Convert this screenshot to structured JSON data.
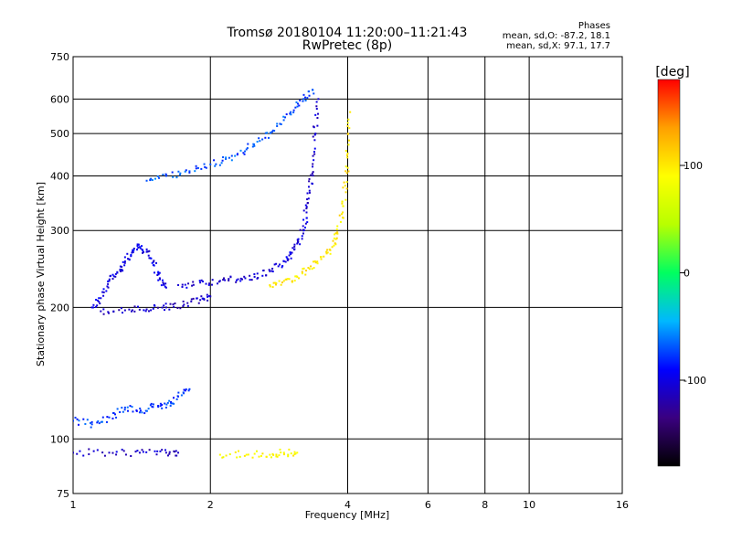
{
  "chart_data": {
    "type": "scatter",
    "title": "Tromsø 20180104 11:20:00–11:21:43",
    "subtitle": "RwPretec (8p)",
    "stats": {
      "heading": "Phases",
      "line1": "mean, sd,O: -87.2, 18.1",
      "line2": "mean, sd,X:  97.1, 17.7"
    },
    "xlabel": "Frequency [MHz]",
    "ylabel": "Stationary phase Virtual Height [km]",
    "x_scale": "log",
    "y_scale": "log",
    "xlim": [
      1,
      16
    ],
    "ylim": [
      75,
      750
    ],
    "x_ticks": [
      1,
      2,
      4,
      6,
      8,
      10,
      16
    ],
    "x_tick_labels": [
      "1",
      "2",
      "4",
      "6",
      "8",
      "10",
      "16"
    ],
    "y_ticks": [
      75,
      100,
      200,
      300,
      400,
      500,
      600,
      750
    ],
    "y_tick_labels": [
      "75",
      "100",
      "200",
      "300",
      "400",
      "500",
      "600",
      "750"
    ],
    "grid": true,
    "colorbar": {
      "label": "[deg]",
      "range": [
        -180,
        180
      ],
      "ticks": [
        100,
        0,
        -100
      ],
      "tick_labels": [
        "100",
        "0",
        "-100"
      ],
      "colors": [
        "#000000",
        "#3a0080",
        "#0000ff",
        "#00b8ff",
        "#00ff60",
        "#b8ff00",
        "#ffff00",
        "#ffa000",
        "#ff0000"
      ]
    },
    "series": [
      {
        "trace": "O-mode F-layer lower branch (1.1–1.6 MHz)",
        "phase_deg": -100,
        "points": [
          [
            1.1,
            200
          ],
          [
            1.15,
            210
          ],
          [
            1.2,
            230
          ],
          [
            1.25,
            240
          ],
          [
            1.3,
            255
          ],
          [
            1.35,
            268
          ],
          [
            1.4,
            275
          ],
          [
            1.45,
            268
          ],
          [
            1.5,
            250
          ],
          [
            1.55,
            232
          ],
          [
            1.6,
            222
          ]
        ]
      },
      {
        "trace": "O-mode F-layer base (1.15–2.0 MHz)",
        "phase_deg": -110,
        "points": [
          [
            1.15,
            196
          ],
          [
            1.3,
            197
          ],
          [
            1.45,
            198
          ],
          [
            1.6,
            200
          ],
          [
            1.75,
            203
          ],
          [
            1.9,
            208
          ],
          [
            2.0,
            212
          ]
        ]
      },
      {
        "trace": "O-mode trace (1.7–3.3 MHz)",
        "phase_deg": -105,
        "points": [
          [
            1.7,
            225
          ],
          [
            1.9,
            228
          ],
          [
            2.1,
            230
          ],
          [
            2.3,
            232
          ],
          [
            2.5,
            235
          ],
          [
            2.7,
            242
          ],
          [
            2.9,
            255
          ],
          [
            3.0,
            265
          ],
          [
            3.1,
            280
          ],
          [
            3.2,
            300
          ],
          [
            3.25,
            330
          ],
          [
            3.3,
            370
          ],
          [
            3.35,
            420
          ],
          [
            3.4,
            500
          ],
          [
            3.45,
            600
          ]
        ]
      },
      {
        "trace": "O-mode high trace (1.45–3.45 MHz)",
        "phase_deg": -70,
        "points": [
          [
            1.45,
            390
          ],
          [
            1.6,
            400
          ],
          [
            1.8,
            410
          ],
          [
            2.0,
            425
          ],
          [
            2.2,
            440
          ],
          [
            2.4,
            460
          ],
          [
            2.6,
            485
          ],
          [
            2.8,
            520
          ],
          [
            3.0,
            560
          ],
          [
            3.2,
            600
          ],
          [
            3.35,
            630
          ]
        ]
      },
      {
        "trace": "X-mode trace (2.7–4.05 MHz)",
        "phase_deg": 100,
        "points": [
          [
            2.7,
            225
          ],
          [
            2.9,
            230
          ],
          [
            3.1,
            235
          ],
          [
            3.3,
            245
          ],
          [
            3.5,
            258
          ],
          [
            3.7,
            275
          ],
          [
            3.8,
            295
          ],
          [
            3.9,
            330
          ],
          [
            3.95,
            380
          ],
          [
            4.0,
            450
          ],
          [
            4.05,
            560
          ]
        ]
      },
      {
        "trace": "X-mode E-layer (2.1–3.1 MHz)",
        "phase_deg": 90,
        "points": [
          [
            2.1,
            92
          ],
          [
            2.4,
            92
          ],
          [
            2.7,
            92
          ],
          [
            2.9,
            93
          ],
          [
            3.1,
            93
          ]
        ]
      },
      {
        "trace": "O-mode E-layer (1.0–1.7 MHz)",
        "phase_deg": -110,
        "points": [
          [
            1.0,
            93
          ],
          [
            1.2,
            93
          ],
          [
            1.4,
            93
          ],
          [
            1.6,
            93
          ],
          [
            1.7,
            93
          ]
        ]
      },
      {
        "trace": "O-mode sporadic echoes (1.0–1.8 MHz)",
        "phase_deg": -75,
        "points": [
          [
            1.0,
            110
          ],
          [
            1.1,
            108
          ],
          [
            1.2,
            112
          ],
          [
            1.3,
            118
          ],
          [
            1.4,
            115
          ],
          [
            1.5,
            120
          ],
          [
            1.6,
            118
          ],
          [
            1.7,
            125
          ],
          [
            1.8,
            130
          ]
        ]
      }
    ]
  }
}
